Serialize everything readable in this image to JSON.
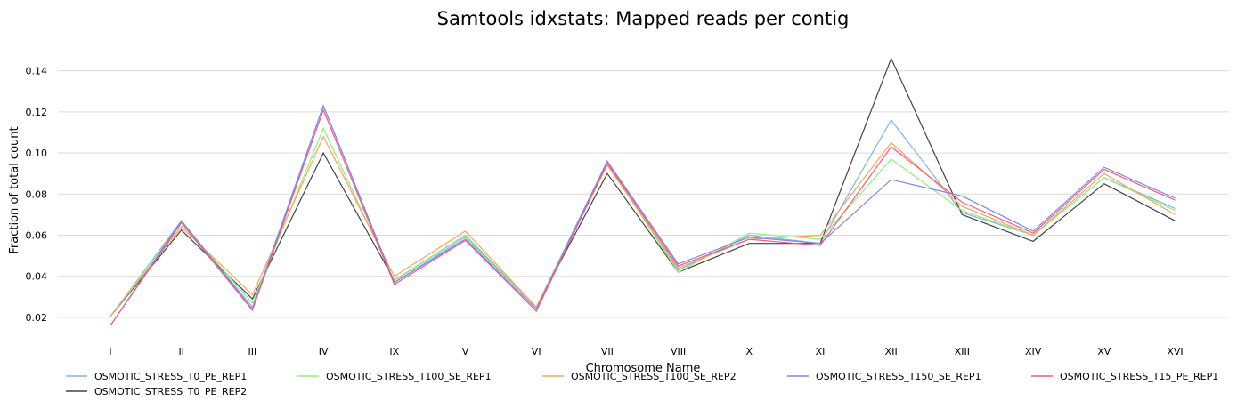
{
  "chart_data": {
    "type": "line",
    "title": "Samtools idxstats: Mapped reads per contig",
    "xlabel": "Chromosome Name",
    "ylabel": "Fraction of total count",
    "categories": [
      "I",
      "II",
      "III",
      "IV",
      "IX",
      "V",
      "VI",
      "VII",
      "VIII",
      "X",
      "XI",
      "XII",
      "XIII",
      "XIV",
      "XV",
      "XVI"
    ],
    "ylim": [
      0.01,
      0.155
    ],
    "yticks": [
      0.02,
      0.04,
      0.06,
      0.08,
      0.1,
      0.12,
      0.14
    ],
    "ytick_labels": [
      "0.02",
      "0.04",
      "0.06",
      "0.08",
      "0.10",
      "0.12",
      "0.14"
    ],
    "grid": true,
    "legend_position": "bottom",
    "series": [
      {
        "name": "OSMOTIC_STRESS_T0_PE_REP1",
        "color": "#7cb5ec",
        "values": [
          0.0205,
          0.067,
          0.025,
          0.123,
          0.037,
          0.059,
          0.025,
          0.096,
          0.043,
          0.06,
          0.056,
          0.116,
          0.071,
          0.06,
          0.088,
          0.073
        ]
      },
      {
        "name": "OSMOTIC_STRESS_T0_PE_REP2",
        "color": "#434348",
        "values": [
          0.0205,
          0.0625,
          0.029,
          0.1,
          0.038,
          0.06,
          0.025,
          0.09,
          0.042,
          0.056,
          0.056,
          0.146,
          0.07,
          0.057,
          0.085,
          0.067
        ]
      },
      {
        "name": "OSMOTIC_STRESS_T100_SE_REP1",
        "color": "#90ed7d",
        "values": [
          0.0205,
          0.066,
          0.027,
          0.112,
          0.038,
          0.06,
          0.025,
          0.095,
          0.042,
          0.061,
          0.058,
          0.097,
          0.072,
          0.06,
          0.088,
          0.072
        ]
      },
      {
        "name": "OSMOTIC_STRESS_T100_SE_REP2",
        "color": "#f7a35c",
        "values": [
          0.0205,
          0.064,
          0.031,
          0.108,
          0.04,
          0.062,
          0.025,
          0.094,
          0.044,
          0.058,
          0.06,
          0.105,
          0.074,
          0.06,
          0.09,
          0.07
        ]
      },
      {
        "name": "OSMOTIC_STRESS_T150_SE_REP1",
        "color": "#8085e9",
        "values": [
          0.016,
          0.067,
          0.024,
          0.123,
          0.037,
          0.058,
          0.024,
          0.096,
          0.046,
          0.059,
          0.056,
          0.087,
          0.079,
          0.062,
          0.093,
          0.078
        ]
      },
      {
        "name": "OSMOTIC_STRESS_T15_PE_REP1",
        "color": "#f15c80",
        "values": [
          0.016,
          0.066,
          0.0235,
          0.121,
          0.036,
          0.0575,
          0.023,
          0.095,
          0.045,
          0.058,
          0.055,
          0.103,
          0.076,
          0.061,
          0.092,
          0.077
        ]
      }
    ]
  }
}
